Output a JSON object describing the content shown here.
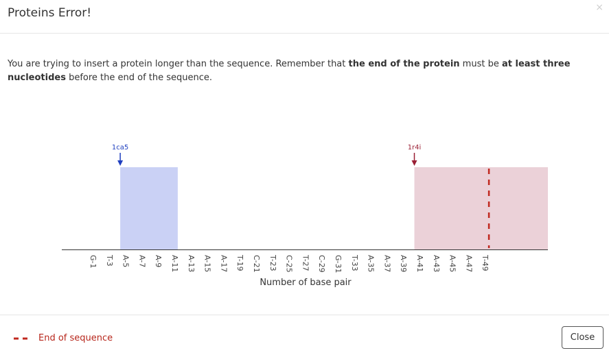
{
  "modal": {
    "title": "Proteins Error!",
    "close_icon": "×",
    "message_part1": "You are trying to insert a protein longer than the sequence. Remember that ",
    "message_bold1": "the end of the protein",
    "message_part2": " must be ",
    "message_bold2": "at least three nucleotides",
    "message_part3": " before the end of the sequence."
  },
  "chart_data": {
    "type": "bar",
    "xlabel": "Number of base pair",
    "tick_labels": [
      "G-1",
      "T-3",
      "A-5",
      "A-7",
      "A-9",
      "A-11",
      "A-13",
      "A-15",
      "A-17",
      "T-19",
      "C-21",
      "T-23",
      "C-25",
      "T-27",
      "C-29",
      "G-31",
      "T-33",
      "A-35",
      "A-37",
      "A-39",
      "A-41",
      "A-43",
      "A-45",
      "A-47",
      "T-49"
    ],
    "proteins": [
      {
        "name": "1ca5",
        "start": 5,
        "end": 12,
        "color": "#cad1f5",
        "arrow_color": "#1f3fbf"
      },
      {
        "name": "1r4i",
        "start": 41,
        "end": 58,
        "color": "#ebd1d8",
        "arrow_color": "#9a1f34"
      }
    ],
    "end_of_sequence": 50,
    "end_marker_color": "#c0271e"
  },
  "footer": {
    "legend_label": "End of sequence",
    "close_label": "Close"
  }
}
